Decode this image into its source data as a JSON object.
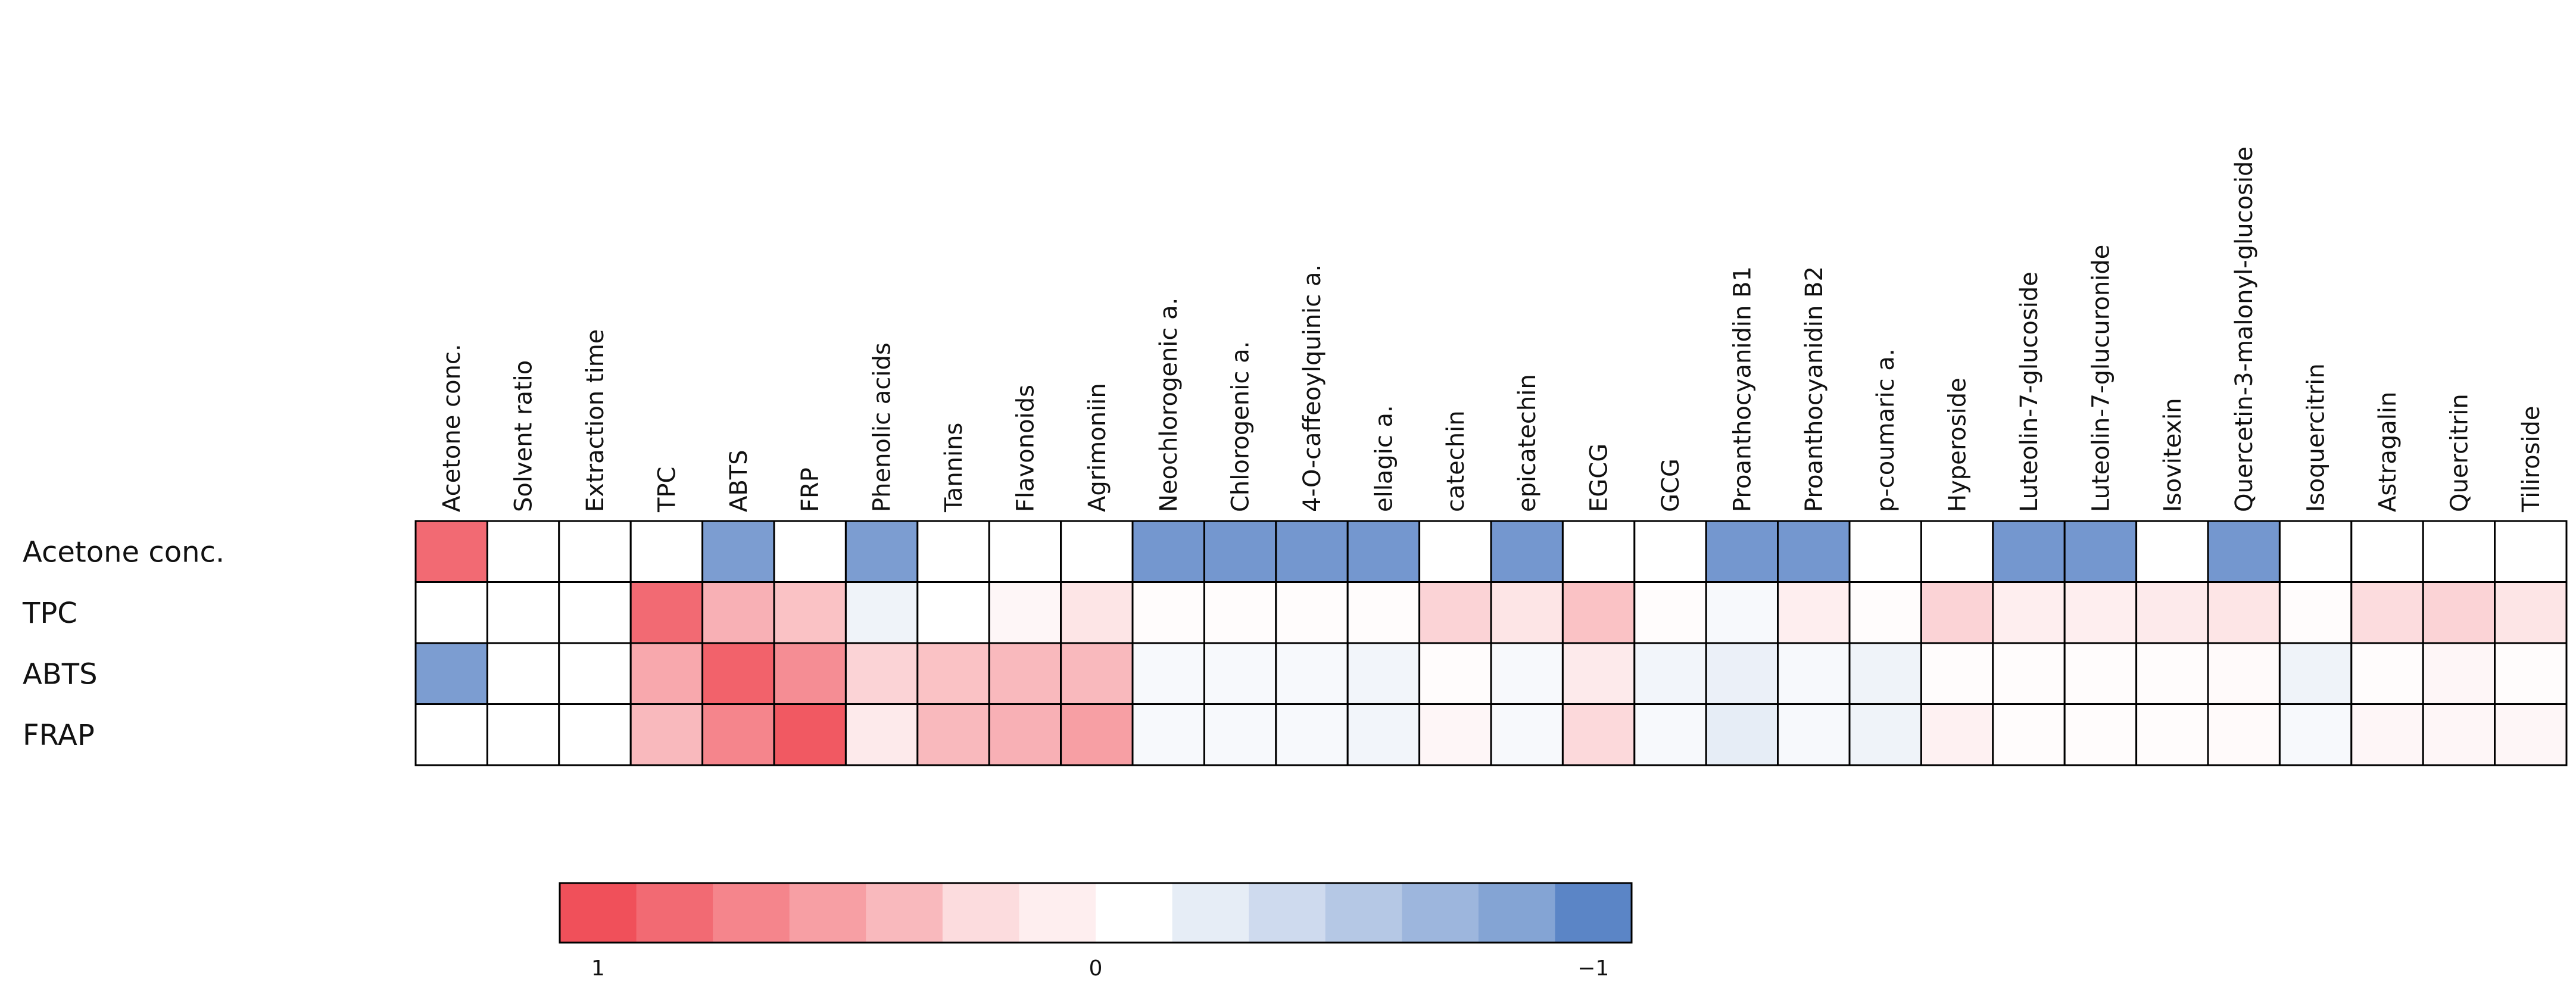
{
  "chart_data": {
    "type": "heatmap",
    "title": "",
    "columns": [
      "Acetone conc.",
      "Solvent ratio",
      "Extraction time",
      "TPC",
      "ABTS",
      "FRP",
      "Phenolic acids",
      "Tannins",
      "Flavonoids",
      "Agrimoniin",
      "Neochlorogenic a.",
      "Chlorogenic a.",
      "4-O-caffeoylquinic a.",
      "ellagic a.",
      "catechin",
      "epicatechin",
      "EGCG",
      "GCG",
      "Proanthocyanidin B1",
      "Proanthocyanidin B2",
      "p-coumaric a.",
      "Hyperoside",
      "Luteolin-7-glucoside",
      "Luteolin-7-glucuronide",
      "Isovitexin",
      "Quercetin-3-malonyl-glucoside",
      "Isoquercitrin",
      "Astragalin",
      "Quercitrin",
      "Tiliroside"
    ],
    "rows": [
      "Acetone conc.",
      "TPC",
      "ABTS",
      "FRAP"
    ],
    "values": [
      [
        0.85,
        0,
        0,
        0,
        -0.8,
        0,
        -0.8,
        0,
        0,
        0,
        -0.85,
        -0.85,
        -0.85,
        -0.85,
        0,
        -0.85,
        0,
        0,
        -0.85,
        -0.85,
        0,
        0,
        -0.85,
        -0.85,
        0,
        -0.85,
        0,
        0,
        0,
        0
      ],
      [
        0,
        0,
        0,
        0.85,
        0.45,
        0.35,
        -0.1,
        0.0,
        0.05,
        0.15,
        0.02,
        0.02,
        0.02,
        0.02,
        0.25,
        0.15,
        0.35,
        0.02,
        -0.05,
        0.1,
        0.02,
        0.25,
        0.1,
        0.1,
        0.12,
        0.15,
        0.02,
        0.2,
        0.25,
        0.15
      ],
      [
        -0.8,
        0,
        0,
        0.5,
        0.9,
        0.65,
        0.25,
        0.35,
        0.4,
        0.4,
        -0.05,
        -0.05,
        -0.05,
        -0.08,
        0.02,
        -0.05,
        0.12,
        -0.08,
        -0.12,
        -0.05,
        -0.1,
        0.02,
        0.02,
        0.02,
        0.02,
        0.03,
        -0.1,
        0.02,
        0.05,
        0.02
      ],
      [
        0,
        0,
        0,
        0.4,
        0.7,
        0.95,
        0.12,
        0.4,
        0.45,
        0.55,
        -0.05,
        -0.05,
        -0.05,
        -0.08,
        0.05,
        -0.05,
        0.22,
        -0.05,
        -0.15,
        -0.05,
        -0.1,
        0.08,
        0.02,
        0.02,
        0.02,
        0.03,
        -0.05,
        0.05,
        0.05,
        0.05
      ]
    ],
    "scale": {
      "steps": [
        1,
        0.85,
        0.7,
        0.55,
        0.4,
        0.2,
        0.1,
        0,
        -0.15,
        -0.3,
        -0.45,
        -0.6,
        -0.75,
        -1
      ],
      "min": -1,
      "max": 1,
      "labels": [
        "1",
        "0",
        "−1"
      ],
      "label_values": [
        1,
        0,
        -1
      ]
    },
    "colors": {
      "positive": "#F0505A",
      "neutral": "#FFFFFF",
      "negative": "#5B85C6",
      "grid": "#000000"
    }
  }
}
